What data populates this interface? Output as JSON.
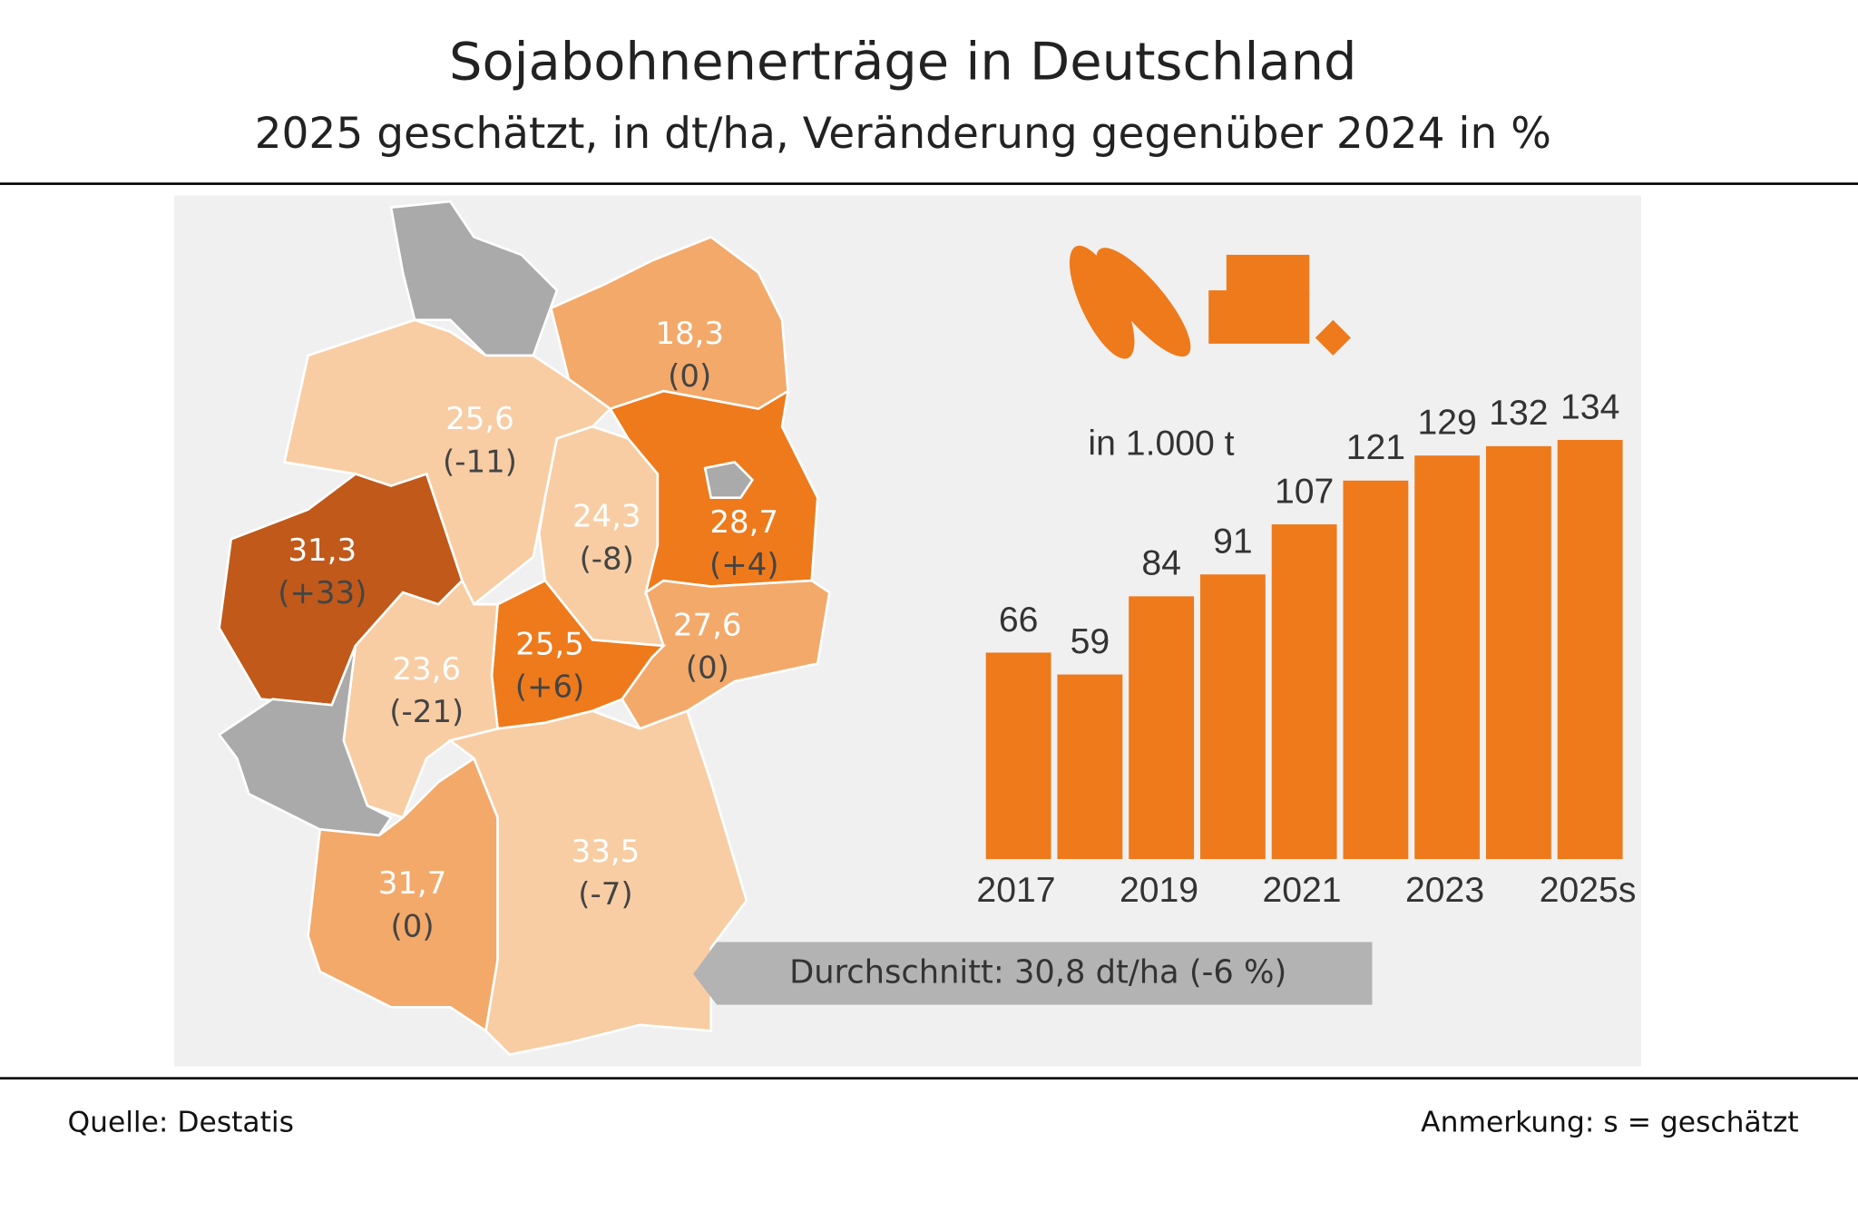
{
  "title": "Sojabohnenerträge in Deutschland",
  "subtitle": "2025 geschätzt, in dt/ha, Veränderung gegenüber 2024 in %",
  "map": {
    "regions": [
      {
        "value": "18,3",
        "change": "(0)"
      },
      {
        "value": "25,6",
        "change": "(-11)"
      },
      {
        "value": "31,3",
        "change": "(+33)"
      },
      {
        "value": "24,3",
        "change": "(-8)"
      },
      {
        "value": "28,7",
        "change": "(+4)"
      },
      {
        "value": "27,6",
        "change": "(0)"
      },
      {
        "value": "25,5",
        "change": "(+6)"
      },
      {
        "value": "23,6",
        "change": "(-21)"
      },
      {
        "value": "31,7",
        "change": "(0)"
      },
      {
        "value": "33,5",
        "change": "(-7)"
      }
    ],
    "average": "Durchschnitt: 30,8 dt/ha (-6 %)"
  },
  "chart_data": {
    "type": "bar",
    "unit_label": "in 1.000 t",
    "color": "#ee7a1c",
    "categories": [
      "2017",
      null,
      "2019",
      null,
      "2021",
      null,
      "2023",
      null,
      "2025s"
    ],
    "values": [
      66,
      59,
      84,
      91,
      107,
      121,
      129,
      132,
      134
    ]
  },
  "source": "Quelle: Destatis",
  "note": "Anmerkung:  s = geschätzt"
}
